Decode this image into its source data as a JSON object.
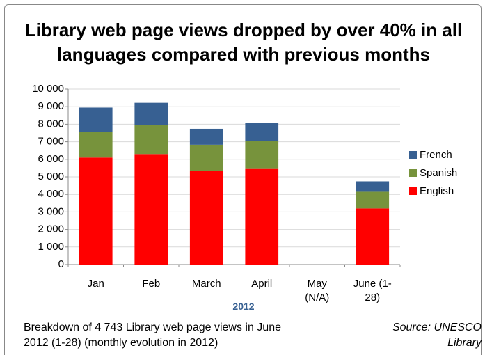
{
  "chart_data": {
    "type": "stacked_bar",
    "title": "Library web page views dropped by over 40% in all languages compared with previous months",
    "categories": [
      "Jan",
      "Feb",
      "March",
      "April",
      "May (N/A)",
      "June (1-28)"
    ],
    "x_label": "2012",
    "series": [
      {
        "name": "English",
        "color": "#ff0000",
        "values": [
          6100,
          6300,
          5350,
          5450,
          null,
          3200
        ]
      },
      {
        "name": "Spanish",
        "color": "#77933c",
        "values": [
          1450,
          1650,
          1480,
          1600,
          null,
          950
        ]
      },
      {
        "name": "French",
        "color": "#376092",
        "values": [
          1400,
          1270,
          910,
          1040,
          null,
          593
        ]
      }
    ],
    "ylim": [
      0,
      10000
    ],
    "yticks": [
      0,
      {
        "value": 1000,
        "label": "1 000"
      },
      {
        "value": 2000,
        "label": "2 000"
      },
      {
        "value": 3000,
        "label": "3 000"
      },
      {
        "value": 4000,
        "label": "4 000"
      },
      {
        "value": 5000,
        "label": "5 000"
      },
      {
        "value": 6000,
        "label": "6 000"
      },
      {
        "value": 7000,
        "label": "7 000"
      },
      {
        "value": 8000,
        "label": "8 000"
      },
      {
        "value": 9000,
        "label": "9 000"
      },
      {
        "value": 10000,
        "label": "10 000"
      }
    ],
    "grid": true,
    "legend": "right",
    "note": "Breakdown of 4 743 Library web page views in June 2012 (1-28) (monthly evolution in 2012)",
    "source": "Source: UNESCO Library"
  }
}
